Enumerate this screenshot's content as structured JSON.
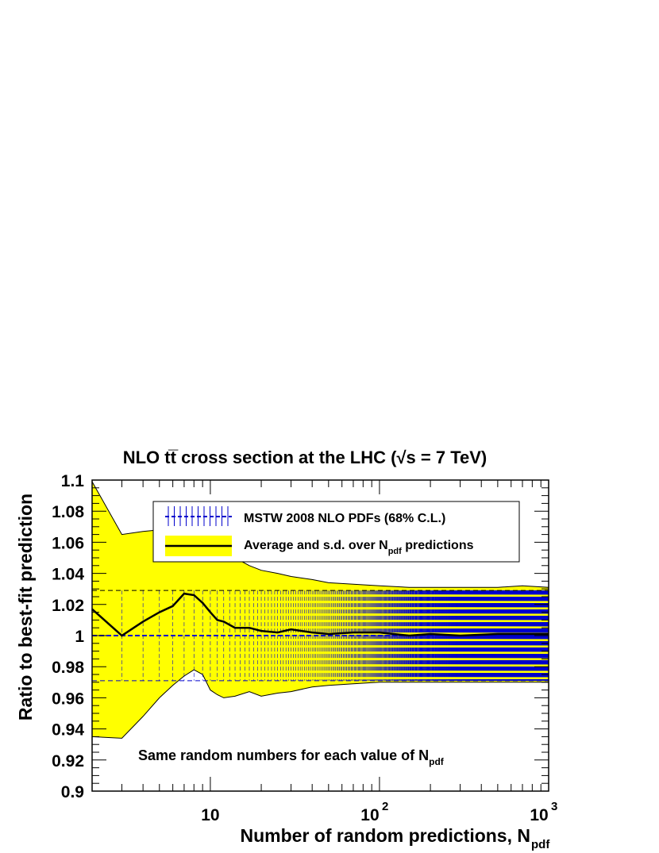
{
  "chart_data": {
    "type": "line",
    "title": "NLO t̅t cross section at the LHC (√s = 7 TeV)",
    "title_parts": {
      "prefix": "NLO t",
      "tbar": "t̅",
      "mid": " cross section at the LHC (",
      "sqrt": "√",
      "suffix": "s = 7 TeV)"
    },
    "xlabel": "Number of random predictions, N",
    "xlabel_sub": "pdf",
    "ylabel": "Ratio to best-fit prediction",
    "xscale": "log",
    "xlim": [
      2,
      1000
    ],
    "ylim": [
      0.9,
      1.1
    ],
    "x_ticks": [
      {
        "value": 10,
        "base": "10",
        "exp": ""
      },
      {
        "value": 100,
        "base": "10",
        "exp": "2"
      },
      {
        "value": 1000,
        "base": "10",
        "exp": "3"
      }
    ],
    "y_ticks": [
      {
        "value": 0.9,
        "label": "0.9"
      },
      {
        "value": 0.92,
        "label": "0.92"
      },
      {
        "value": 0.94,
        "label": "0.94"
      },
      {
        "value": 0.96,
        "label": "0.96"
      },
      {
        "value": 0.98,
        "label": "0.98"
      },
      {
        "value": 1.0,
        "label": "1"
      },
      {
        "value": 1.02,
        "label": "1.02"
      },
      {
        "value": 1.04,
        "label": "1.04"
      },
      {
        "value": 1.06,
        "label": "1.06"
      },
      {
        "value": 1.08,
        "label": "1.08"
      },
      {
        "value": 1.1,
        "label": "1.1"
      }
    ],
    "legend": {
      "placement": "top-right",
      "entries": [
        {
          "label": "MSTW 2008 NLO PDFs (68% C.L.)",
          "sub": ""
        },
        {
          "label": "Average and s.d. over N",
          "sub": "pdf",
          "suffix": " predictions"
        }
      ]
    },
    "annotation": {
      "text": "Same random numbers for each value of N",
      "sub": "pdf"
    },
    "series": [
      {
        "name": "MSTW 2008 NLO PDFs (68% C.L.)",
        "kind": "errorbar",
        "x_range": [
          2,
          1000
        ],
        "center": 1.0,
        "upper": 1.029,
        "lower": 0.971
      },
      {
        "name": "Average and s.d. over Npdf predictions",
        "kind": "line_with_band",
        "x": [
          2,
          3,
          4,
          5,
          6,
          7,
          8,
          9,
          10,
          11,
          12,
          14,
          17,
          20,
          25,
          30,
          40,
          50,
          70,
          100,
          150,
          200,
          300,
          500,
          700,
          1000
        ],
        "mean": [
          1.017,
          1.0,
          1.009,
          1.015,
          1.019,
          1.027,
          1.026,
          1.021,
          1.015,
          1.01,
          1.009,
          1.005,
          1.005,
          1.003,
          1.002,
          1.004,
          1.002,
          1.001,
          1.002,
          1.002,
          1.0,
          1.001,
          1.0,
          1.001,
          1.001,
          1.001
        ],
        "upper": [
          1.099,
          1.065,
          1.067,
          1.068,
          1.068,
          1.066,
          1.065,
          1.062,
          1.06,
          1.057,
          1.053,
          1.05,
          1.045,
          1.042,
          1.04,
          1.038,
          1.036,
          1.034,
          1.033,
          1.032,
          1.031,
          1.031,
          1.031,
          1.031,
          1.032,
          1.031
        ],
        "lower": [
          0.935,
          0.934,
          0.948,
          0.96,
          0.968,
          0.974,
          0.978,
          0.975,
          0.965,
          0.962,
          0.96,
          0.961,
          0.964,
          0.961,
          0.963,
          0.964,
          0.967,
          0.968,
          0.969,
          0.97,
          0.97,
          0.97,
          0.97,
          0.97,
          0.97,
          0.97
        ]
      }
    ],
    "colors": {
      "band_fill": "#ffff00",
      "mean_line": "#000000",
      "errorbar": "#0000cc",
      "frame": "#000000"
    },
    "grid": false
  }
}
